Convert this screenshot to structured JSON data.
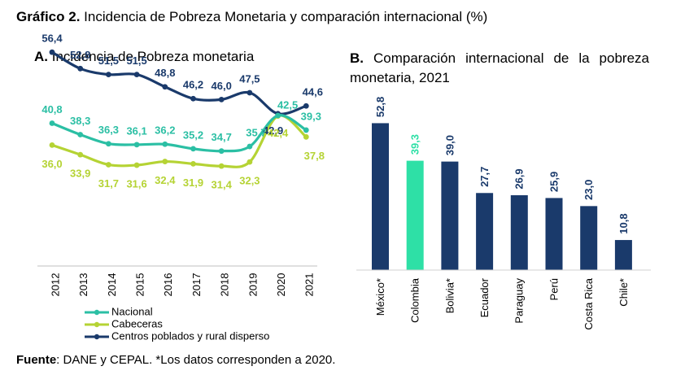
{
  "figure": {
    "label": "Gráfico 2.",
    "title": "Incidencia de Pobreza Monetaria y comparación internacional (%)"
  },
  "footer": {
    "label": "Fuente",
    "text": ": DANE y CEPAL. *Los datos corresponden a 2020."
  },
  "chart_data": [
    {
      "type": "line",
      "panel_label": "A.",
      "title": "Incidencia de Pobreza monetaria",
      "x": [
        "2012",
        "2013",
        "2014",
        "2015",
        "2016",
        "2017",
        "2018",
        "2019",
        "2020",
        "2021"
      ],
      "series": [
        {
          "name": "Nacional",
          "color": "#2bbfa4",
          "values": [
            40.8,
            38.3,
            36.3,
            36.1,
            36.2,
            35.2,
            34.7,
            35.7,
            42.5,
            39.3
          ],
          "labels": [
            "40,8",
            "38,3",
            "36,3",
            "36,1",
            "36,2",
            "35,2",
            "34,7",
            "35,7",
            "42,5",
            "39,3"
          ]
        },
        {
          "name": "Cabeceras",
          "color": "#b5d334",
          "values": [
            36.0,
            33.9,
            31.7,
            31.6,
            32.4,
            31.9,
            31.4,
            32.3,
            42.4,
            37.8
          ],
          "labels": [
            "36,0",
            "33,9",
            "31,7",
            "31,6",
            "32,4",
            "31,9",
            "31,4",
            "32,3",
            "42,4",
            "37,8"
          ]
        },
        {
          "name": "Centros poblados y rural disperso",
          "color": "#1a3a6b",
          "values": [
            56.4,
            52.8,
            51.5,
            51.5,
            48.8,
            46.2,
            46.0,
            47.5,
            42.9,
            44.6
          ],
          "labels": [
            "56,4",
            "52,8",
            "51,5",
            "51,5",
            "48,8",
            "46,2",
            "46,0",
            "47,5",
            "42,9",
            "44,6"
          ]
        }
      ],
      "legend_position": "bottom-left",
      "grid": false
    },
    {
      "type": "bar",
      "panel_label": "B.",
      "title": "Comparación internacional de la pobreza monetaria, 2021",
      "categories": [
        "México*",
        "Colombia",
        "Bolivia*",
        "Ecuador",
        "Paraguay",
        "Perú",
        "Costa Rica",
        "Chile*"
      ],
      "values": [
        52.8,
        39.3,
        39.0,
        27.7,
        26.9,
        25.9,
        23.0,
        10.8
      ],
      "labels": [
        "52,8",
        "39,3",
        "39,0",
        "27,7",
        "26,9",
        "25,9",
        "23,0",
        "10,8"
      ],
      "colors": [
        "#1a3a6b",
        "#2ee0a6",
        "#1a3a6b",
        "#1a3a6b",
        "#1a3a6b",
        "#1a3a6b",
        "#1a3a6b",
        "#1a3a6b"
      ],
      "grid": false
    }
  ]
}
